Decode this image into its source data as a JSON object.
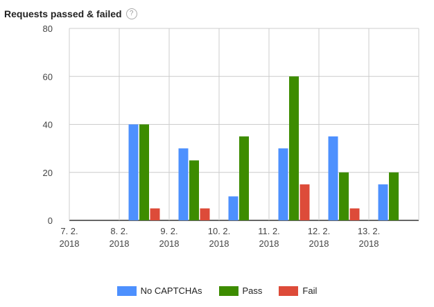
{
  "header": {
    "title": "Requests passed & failed",
    "help_icon": "question-circle-icon",
    "help_glyph": "?"
  },
  "chart_data": {
    "type": "bar",
    "categories": [
      [
        "7. 2.",
        "2018"
      ],
      [
        "8. 2.",
        "2018"
      ],
      [
        "9. 2.",
        "2018"
      ],
      [
        "10. 2.",
        "2018"
      ],
      [
        "11. 2.",
        "2018"
      ],
      [
        "12. 2.",
        "2018"
      ],
      [
        "13. 2.",
        "2018"
      ]
    ],
    "series": [
      {
        "name": "No CAPTCHAs",
        "color": "#4d90fe",
        "values": [
          0,
          40,
          30,
          10,
          30,
          35,
          15
        ]
      },
      {
        "name": "Pass",
        "color": "#3d8c00",
        "values": [
          0,
          40,
          25,
          35,
          60,
          20,
          20
        ]
      },
      {
        "name": "Fail",
        "color": "#dd4b39",
        "values": [
          0,
          5,
          5,
          0,
          15,
          5,
          0
        ]
      }
    ],
    "ylim": [
      0,
      80
    ],
    "yticks": [
      0,
      20,
      40,
      60,
      80
    ],
    "grid": true,
    "legend": "bottom"
  }
}
